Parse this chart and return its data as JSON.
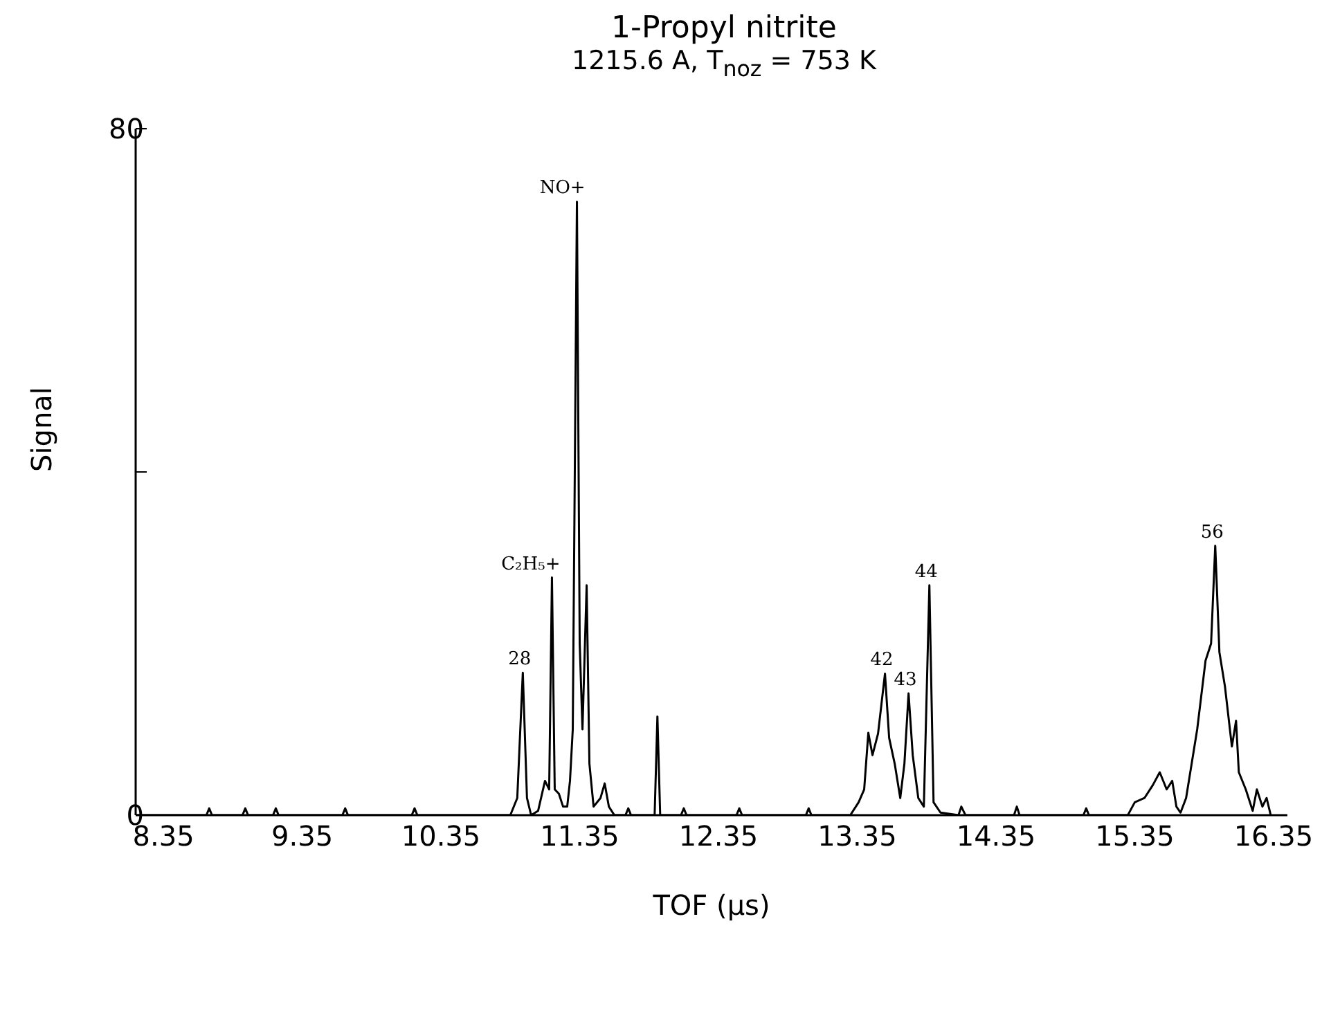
{
  "chart_data": {
    "type": "line",
    "title": "1-Propyl nitrite",
    "subtitle": "1215.6 A, T$_{noz}$ = 753 K",
    "xlabel": "TOF (μs)",
    "ylabel": "Signal",
    "x": [
      8.15,
      8.66,
      8.68,
      8.7,
      8.92,
      8.94,
      8.96,
      9.14,
      9.16,
      9.18,
      9.64,
      9.66,
      9.68,
      10.14,
      10.16,
      10.18,
      10.85,
      10.9,
      10.94,
      10.97,
      11.0,
      11.05,
      11.1,
      11.13,
      11.15,
      11.17,
      11.2,
      11.23,
      11.26,
      11.28,
      11.3,
      11.33,
      11.35,
      11.37,
      11.4,
      11.42,
      11.45,
      11.5,
      11.53,
      11.56,
      11.6,
      11.68,
      11.7,
      11.72,
      11.89,
      11.91,
      11.93,
      12.08,
      12.1,
      12.12,
      12.48,
      12.5,
      12.52,
      12.98,
      13.0,
      13.02,
      13.3,
      13.36,
      13.4,
      13.43,
      13.46,
      13.5,
      13.55,
      13.58,
      13.62,
      13.66,
      13.69,
      13.72,
      13.75,
      13.79,
      13.83,
      13.87,
      13.9,
      13.95,
      14.08,
      14.1,
      14.13,
      14.48,
      14.5,
      14.52,
      14.98,
      15.0,
      15.02,
      15.3,
      15.35,
      15.42,
      15.48,
      15.53,
      15.58,
      15.62,
      15.65,
      15.68,
      15.72,
      15.8,
      15.86,
      15.9,
      15.93,
      15.96,
      16.0,
      16.05,
      16.08,
      16.1,
      16.15,
      16.2,
      16.23,
      16.27,
      16.3,
      16.33
    ],
    "series": [
      {
        "color": "#000000",
        "values": [
          0,
          0,
          0.8,
          0,
          0,
          0.8,
          0,
          0,
          0.8,
          0,
          0,
          0.8,
          0,
          0,
          0.8,
          0,
          0,
          2,
          16.6,
          2,
          0,
          0.5,
          4,
          3,
          27.7,
          3,
          2.5,
          1,
          1,
          4,
          10,
          71.5,
          20,
          10,
          26.8,
          6,
          1,
          2,
          3.7,
          1,
          0,
          0,
          0.8,
          0,
          0,
          11.5,
          0,
          0,
          0.8,
          0,
          0,
          0.8,
          0,
          0,
          0.8,
          0,
          0,
          1.5,
          3,
          9.6,
          7,
          9.5,
          16.5,
          9,
          6,
          2,
          6,
          14.2,
          7,
          2,
          1,
          26.8,
          1.5,
          0.3,
          0,
          1,
          0,
          0,
          1,
          0,
          0,
          0.8,
          0,
          0,
          1.5,
          2,
          3.5,
          5,
          3,
          4,
          1,
          0.3,
          2,
          10,
          18,
          20,
          31.4,
          19,
          15,
          8,
          11,
          5,
          3,
          0.5,
          3,
          1,
          2,
          0
        ]
      }
    ],
    "xlim": [
      8.15,
      16.45
    ],
    "xticks": [
      8.35,
      9.35,
      10.35,
      11.35,
      12.35,
      13.35,
      14.35,
      15.35,
      16.35
    ],
    "ylim": [
      0,
      80
    ],
    "yticks": [
      0,
      {
        "value": 40,
        "label": null
      },
      80
    ],
    "marker": "none",
    "line_style": "solid",
    "grid": false,
    "legend": false,
    "annotations": [
      {
        "text": "28",
        "x": 10.94,
        "y": 16.6
      },
      {
        "text": "C₂H₅+",
        "x": 11.15,
        "y": 27.7
      },
      {
        "text": "NO+",
        "x": 11.33,
        "y": 71.5
      },
      {
        "text": "42",
        "x": 13.55,
        "y": 16.5
      },
      {
        "text": "43",
        "x": 13.72,
        "y": 14.2
      },
      {
        "text": "44",
        "x": 13.87,
        "y": 26.8
      },
      {
        "text": "56",
        "x": 15.93,
        "y": 31.4
      }
    ]
  }
}
